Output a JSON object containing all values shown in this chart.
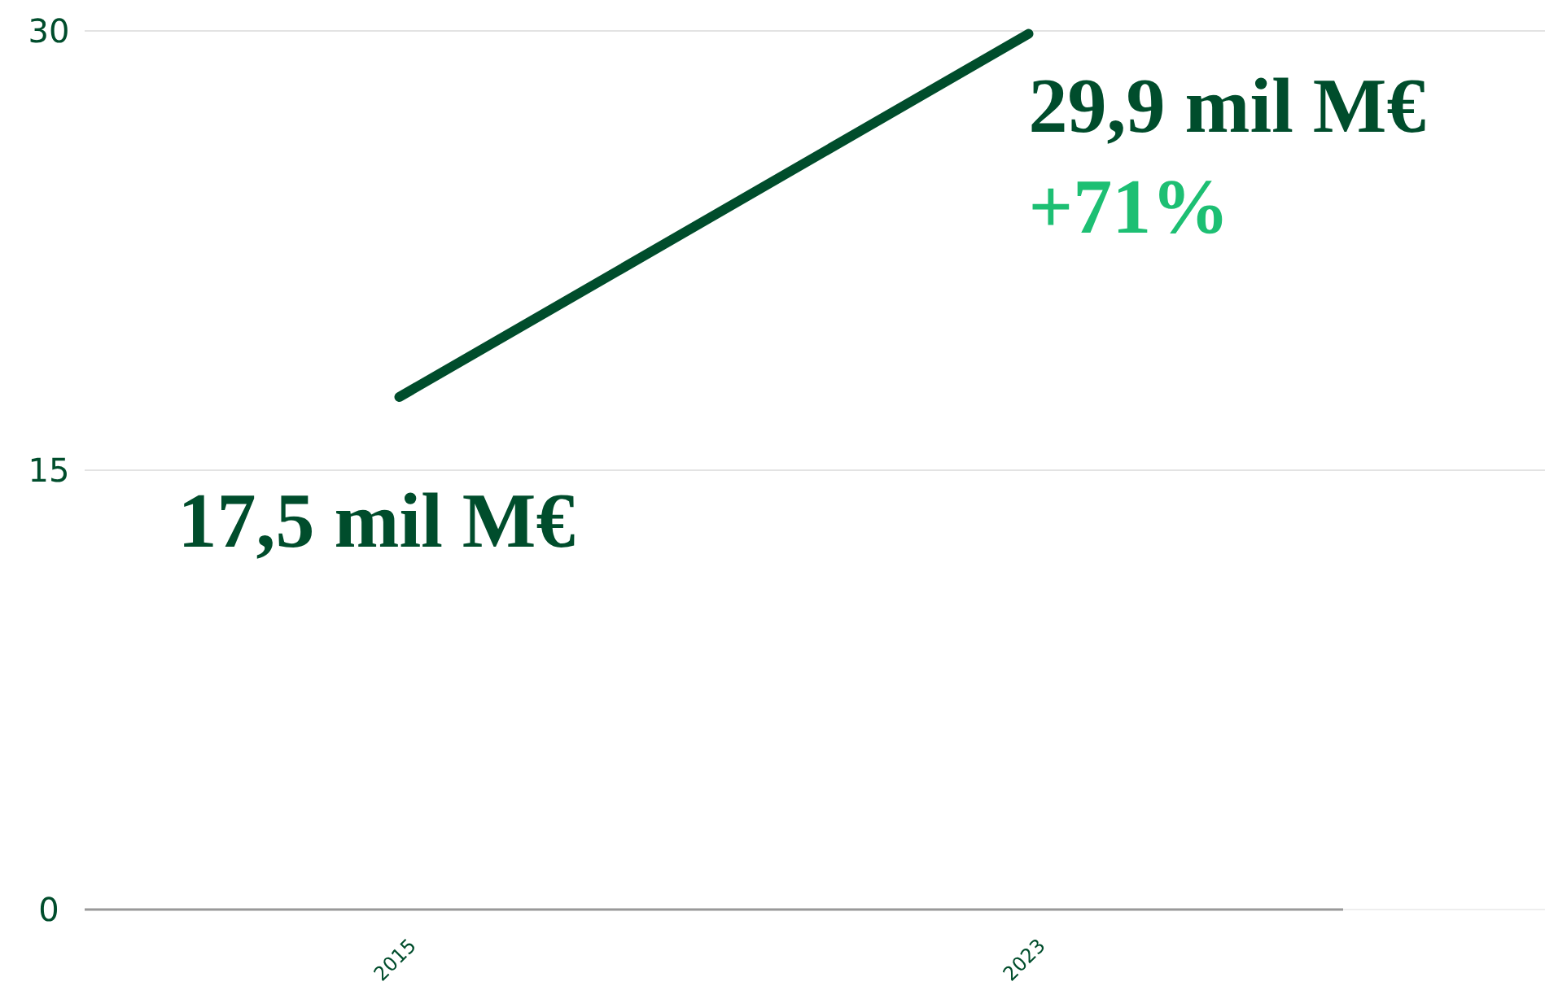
{
  "chart_data": {
    "type": "line",
    "categories": [
      "2015",
      "2023"
    ],
    "series": [
      {
        "color": "#004d2c",
        "values": [
          17.5,
          29.9
        ],
        "value_labels": [
          "17,5 mil M€",
          "29,9 mil M€"
        ]
      }
    ],
    "ylim": [
      0,
      30
    ],
    "yticks": [
      0,
      15,
      30
    ],
    "grid": "y",
    "marker": "none",
    "line_style": "solid",
    "annotations": [
      {
        "text": "+71%",
        "x": "2023",
        "y": 29.9
      }
    ]
  }
}
